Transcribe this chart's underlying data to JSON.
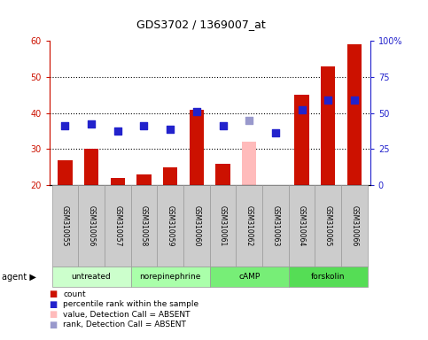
{
  "title": "GDS3702 / 1369007_at",
  "samples": [
    "GSM310055",
    "GSM310056",
    "GSM310057",
    "GSM310058",
    "GSM310059",
    "GSM310060",
    "GSM310061",
    "GSM310062",
    "GSM310063",
    "GSM310064",
    "GSM310065",
    "GSM310066"
  ],
  "count_values": [
    27,
    30,
    22,
    23,
    25,
    41,
    26,
    null,
    20,
    45,
    53,
    59
  ],
  "count_absent": [
    null,
    null,
    null,
    null,
    null,
    null,
    null,
    32,
    null,
    null,
    null,
    null
  ],
  "rank_values": [
    36.5,
    37.0,
    35.0,
    36.5,
    35.5,
    40.5,
    36.5,
    null,
    34.5,
    41.0,
    43.5,
    43.5
  ],
  "rank_absent": [
    null,
    null,
    null,
    null,
    null,
    null,
    null,
    38.0,
    null,
    null,
    null,
    null
  ],
  "ylim_left": [
    20,
    60
  ],
  "ylim_right": [
    0,
    100
  ],
  "yticks_left": [
    20,
    30,
    40,
    50,
    60
  ],
  "ytick_labels_left": [
    "20",
    "30",
    "40",
    "50",
    "60"
  ],
  "yticks_right": [
    0,
    25,
    50,
    75,
    100
  ],
  "ytick_labels_right": [
    "0",
    "25",
    "50",
    "75",
    "100%"
  ],
  "groups": [
    {
      "label": "untreated",
      "indices": [
        0,
        1,
        2
      ],
      "color": "#ccffcc"
    },
    {
      "label": "norepinephrine",
      "indices": [
        3,
        4,
        5
      ],
      "color": "#aaffaa"
    },
    {
      "label": "cAMP",
      "indices": [
        6,
        7,
        8
      ],
      "color": "#77ee77"
    },
    {
      "label": "forskolin",
      "indices": [
        9,
        10,
        11
      ],
      "color": "#55dd55"
    }
  ],
  "bar_color_red": "#cc1100",
  "bar_color_pink": "#ffbbbb",
  "dot_color_blue": "#2222cc",
  "dot_color_light_blue": "#9999cc",
  "bar_width": 0.55,
  "dot_size": 30,
  "legend_items": [
    {
      "color": "#cc1100",
      "label": "count",
      "marker": "s"
    },
    {
      "color": "#2222cc",
      "label": "percentile rank within the sample",
      "marker": "s"
    },
    {
      "color": "#ffbbbb",
      "label": "value, Detection Call = ABSENT",
      "marker": "s"
    },
    {
      "color": "#9999cc",
      "label": "rank, Detection Call = ABSENT",
      "marker": "s"
    }
  ],
  "left_axis_color": "#cc1100",
  "right_axis_color": "#2222cc",
  "background_color": "#ffffff",
  "grid_color": "#000000",
  "tick_label_area_color": "#cccccc",
  "tick_label_edge_color": "#999999"
}
